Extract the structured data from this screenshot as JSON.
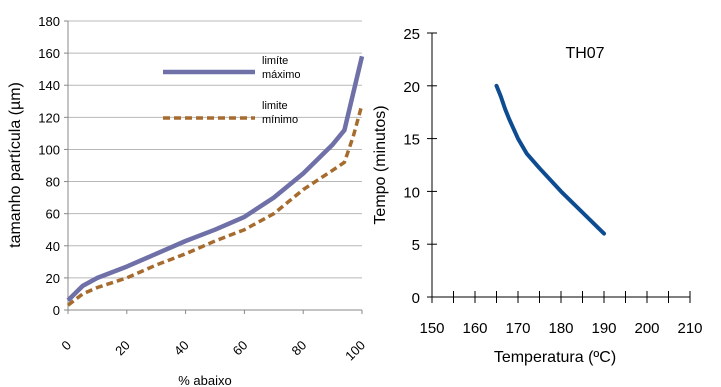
{
  "chart_data": [
    {
      "type": "line",
      "title": "",
      "xlabel": "% abaixo",
      "ylabel": "tamanho partícula (µm)",
      "xlim": [
        0,
        100
      ],
      "ylim": [
        0,
        180
      ],
      "x_ticks": [
        0,
        20,
        40,
        60,
        80,
        100
      ],
      "y_ticks": [
        0,
        20,
        40,
        60,
        80,
        100,
        120,
        140,
        160,
        180
      ],
      "x_tick_labels": [
        "0",
        "20",
        "40",
        "60",
        "80",
        "100"
      ],
      "y_tick_labels": [
        "0",
        "20",
        "40",
        "60",
        "80",
        "100",
        "120",
        "140",
        "160",
        "180"
      ],
      "grid": "horizontal",
      "legend": "inside-top-right",
      "series": [
        {
          "name": "limíte máximo",
          "name_lines": [
            "limíte",
            "máximo"
          ],
          "color": "#7070A8",
          "style": "solid",
          "x": [
            0,
            5,
            10,
            20,
            30,
            40,
            50,
            60,
            70,
            80,
            90,
            94,
            100
          ],
          "y": [
            6,
            15,
            20,
            27,
            35,
            43,
            50,
            58,
            70,
            85,
            103,
            112,
            158
          ]
        },
        {
          "name": "limite mínimo",
          "name_lines": [
            "limite",
            "mínimo"
          ],
          "color": "#A66B2E",
          "style": "dashed",
          "x": [
            0,
            5,
            10,
            20,
            30,
            40,
            50,
            60,
            70,
            80,
            90,
            94,
            97,
            100
          ],
          "y": [
            3,
            10,
            14,
            20,
            28,
            35,
            43,
            50,
            60,
            75,
            87,
            92,
            108,
            128
          ]
        }
      ]
    },
    {
      "type": "line",
      "title": "TH07",
      "xlabel": "Temperatura (ºC)",
      "ylabel": "Tempo (minutos)",
      "xlim": [
        150,
        210
      ],
      "ylim": [
        0,
        25
      ],
      "x_ticks": [
        150,
        160,
        170,
        180,
        190,
        200,
        210
      ],
      "y_ticks": [
        0,
        5,
        10,
        15,
        20,
        25
      ],
      "x_tick_labels": [
        "150",
        "160",
        "170",
        "180",
        "190",
        "200",
        "210"
      ],
      "y_tick_labels": [
        "0",
        "5",
        "10",
        "15",
        "20",
        "25"
      ],
      "grid": "none",
      "series": [
        {
          "color": "#0E4C92",
          "style": "solid",
          "x": [
            165,
            166,
            167,
            168,
            170,
            172,
            175,
            180,
            185,
            190
          ],
          "y": [
            20,
            19,
            17.8,
            16.8,
            15,
            13.6,
            12.2,
            10,
            8,
            6
          ]
        }
      ]
    }
  ]
}
